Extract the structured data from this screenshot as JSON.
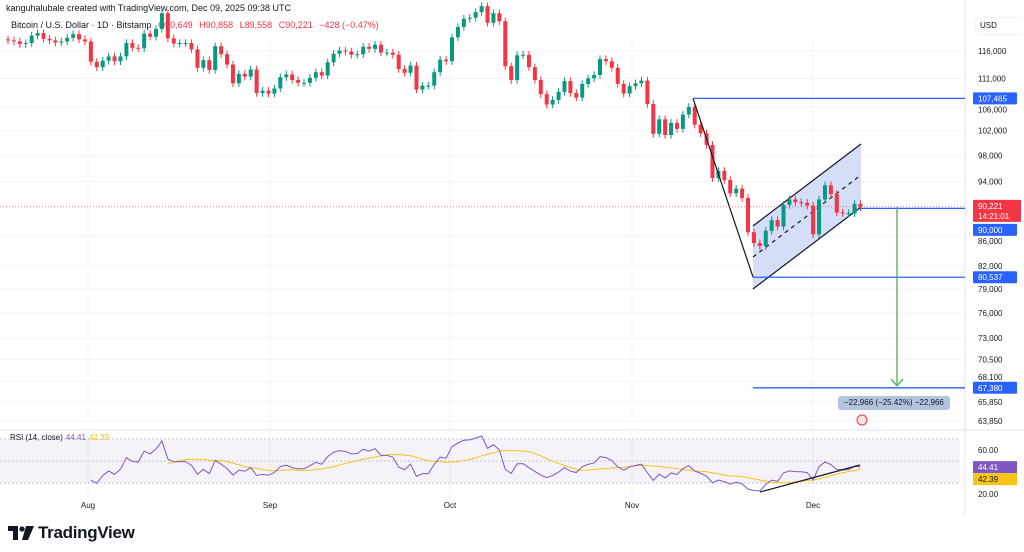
{
  "header": {
    "credit": "kanguhalubale created with TradingView.com, Dec 09, 2025 09:38 UTC",
    "symbol": "Bitcoin / U.S. Dollar · 1D · Bitstamp",
    "open": "O90,649",
    "high": "H90,858",
    "low": "L89,558",
    "close": "C90,221",
    "change": "−428 (−0.47%)"
  },
  "axis": {
    "currency": "USD"
  },
  "rsi_legend": {
    "label": "RSI (14, close)",
    "rsi": "44.41",
    "ma": "42.39"
  },
  "measure_label": "−22,966 (−25.42%) −22,966",
  "brand": "TradingView",
  "colors": {
    "up": "#089981",
    "down": "#f23645",
    "drawing": "#2962ff",
    "channel_fill": "#c9d6f7",
    "arrow": "#4caf50",
    "rsi": "#7e57c2",
    "rsi_ma": "#f5c518"
  },
  "chart_data": {
    "type": "candlestick",
    "title": "Bitcoin / U.S. Dollar · 1D · Bitstamp",
    "scale": "log",
    "start_date": "2025-07-18",
    "end_date": "2025-12-09",
    "first_open": 118200,
    "closes": [
      118000,
      117800,
      117300,
      117500,
      118900,
      119400,
      118300,
      118000,
      117600,
      117800,
      118500,
      119200,
      118200,
      117800,
      114000,
      113000,
      114200,
      115000,
      114100,
      115000,
      117500,
      116600,
      116500,
      119300,
      118700,
      120200,
      123300,
      118400,
      117400,
      117500,
      117500,
      116300,
      112900,
      114300,
      112500,
      116900,
      115400,
      113500,
      110100,
      111800,
      111300,
      112600,
      108400,
      108800,
      108300,
      109200,
      111200,
      111700,
      110700,
      110200,
      110200,
      111100,
      112100,
      111500,
      113900,
      115500,
      116100,
      115900,
      115300,
      115400,
      116800,
      116400,
      117200,
      115700,
      115700,
      115300,
      112700,
      112000,
      113300,
      109000,
      109700,
      109700,
      112100,
      114400,
      114100,
      118600,
      120600,
      122200,
      122400,
      123500,
      124700,
      121400,
      123300,
      121700,
      113200,
      110700,
      115200,
      115300,
      113000,
      110700,
      108200,
      106400,
      107200,
      108600,
      110500,
      108400,
      107600,
      110000,
      111000,
      111600,
      114500,
      114100,
      112900,
      110000,
      108300,
      109600,
      110100,
      110600,
      106500,
      101500,
      103900,
      101300,
      103300,
      102300,
      104700,
      106000,
      103000,
      101600,
      99700,
      94500,
      95600,
      94200,
      92200,
      92900,
      91500,
      86600,
      85100,
      84700,
      86800,
      88300,
      87400,
      90500,
      91300,
      90900,
      90800,
      90400,
      86300,
      91300,
      93400,
      92100,
      89400,
      89300,
      89300,
      90649,
      90221
    ],
    "last": {
      "open": 90649,
      "high": 90858,
      "low": 89558,
      "close": 90221,
      "change": -428,
      "change_pct": -0.47
    },
    "x_ticks": [
      "Aug",
      "Sep",
      "Oct",
      "Nov",
      "Dec"
    ],
    "y_ticks": [
      116000,
      111000,
      106000,
      102000,
      98000,
      94000,
      86000,
      82000,
      79000,
      76000,
      73000,
      70500,
      68100,
      65850,
      63850
    ],
    "y_tick_labels": [
      "116,000",
      "111,000",
      "106,000",
      "102,000",
      "98,000",
      "94,000",
      "86,000",
      "82,000",
      "79,000",
      "76,000",
      "73,000",
      "70,500",
      "68,100",
      "65,850",
      "63,850"
    ],
    "price_tags": [
      {
        "label": "107,465",
        "value": 107465,
        "color": "#2962ff"
      },
      {
        "label": "90,000",
        "value": 90000,
        "color": "#2962ff"
      },
      {
        "label": "80,537",
        "value": 80537,
        "color": "#2962ff"
      },
      {
        "label": "67,380",
        "value": 67380,
        "color": "#2962ff"
      }
    ],
    "last_price_tag": {
      "label": "90,221",
      "countdown": "14:21:01",
      "color": "#f23645"
    },
    "rsi": {
      "period": 14,
      "ma_period": 14,
      "last": 44.41,
      "ma_last": 42.39,
      "ticks": [
        60,
        20
      ],
      "tick_labels": [
        "60.00",
        "20.00"
      ],
      "band": [
        70,
        30
      ]
    },
    "drawings": {
      "swing_high": 107465,
      "swing_low": 80537,
      "support": 90000,
      "target": 67380,
      "measured_move": -22966,
      "measured_move_pct": -25.42
    }
  }
}
